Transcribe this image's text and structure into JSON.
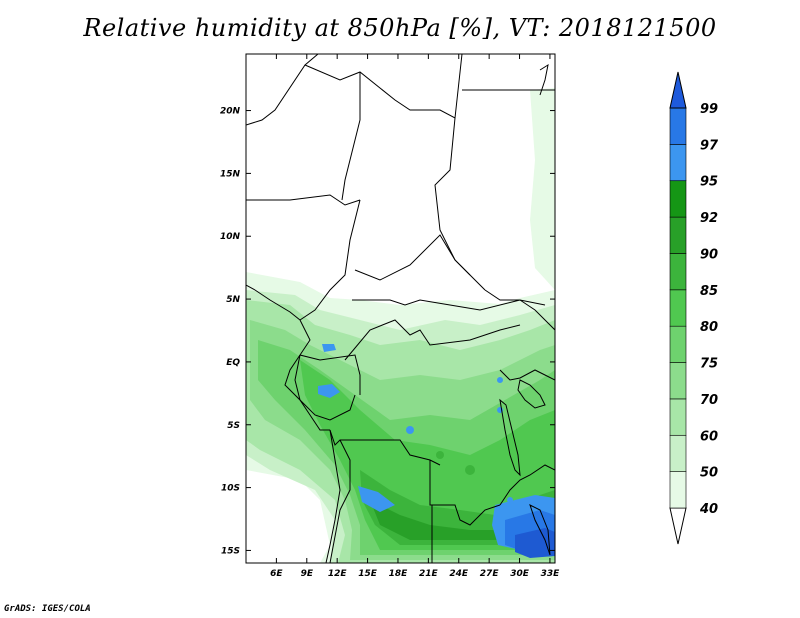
{
  "title": "Relative humidity at 850hPa [%], VT: 2018121500",
  "footer": "GrADS: IGES/COLA",
  "map": {
    "lon_range": [
      3,
      33.5
    ],
    "lat_range": [
      -16,
      24.5
    ],
    "lon_ticks": [
      "6E",
      "9E",
      "12E",
      "15E",
      "18E",
      "21E",
      "24E",
      "27E",
      "30E",
      "33E"
    ],
    "lon_tick_values": [
      6,
      9,
      12,
      15,
      18,
      21,
      24,
      27,
      30,
      33
    ],
    "lat_ticks": [
      "20N",
      "15N",
      "10N",
      "5N",
      "EQ",
      "5S",
      "10S",
      "15S"
    ],
    "lat_tick_values": [
      20,
      15,
      10,
      5,
      0,
      -5,
      -10,
      -15
    ]
  },
  "colorbar": {
    "levels": [
      "40",
      "50",
      "60",
      "70",
      "75",
      "80",
      "85",
      "90",
      "92",
      "95",
      "97",
      "99"
    ],
    "colors": [
      "#e6fae6",
      "#c8f0c8",
      "#a8e6a8",
      "#8cdc8c",
      "#6ed26e",
      "#50c850",
      "#3cb43c",
      "#28a028",
      "#159615",
      "#3c96f0",
      "#2878e6",
      "#1e5ad2",
      "#1e5adc"
    ]
  },
  "colors": {
    "border": "#000000",
    "background": "#ffffff"
  }
}
